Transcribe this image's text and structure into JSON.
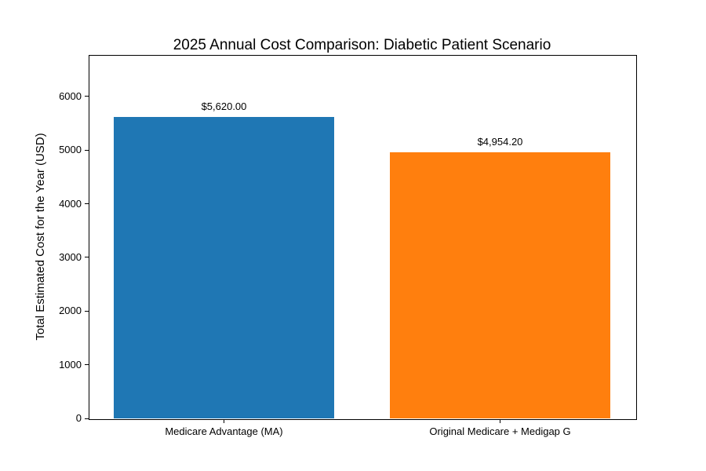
{
  "chart_data": {
    "type": "bar",
    "title": "2025 Annual Cost Comparison: Diabetic Patient Scenario",
    "xlabel": "",
    "ylabel": "Total Estimated Cost for the Year (USD)",
    "categories": [
      "Medicare Advantage (MA)",
      "Original Medicare + Medigap G"
    ],
    "values": [
      5620.0,
      4954.2
    ],
    "value_labels": [
      "$5,620.00",
      "$4,954.20"
    ],
    "bar_colors": [
      "#1f77b4",
      "#ff7f0e"
    ],
    "yticks": [
      0,
      1000,
      2000,
      3000,
      4000,
      5000,
      6000
    ],
    "ytick_labels": [
      "0",
      "1000",
      "2000",
      "3000",
      "4000",
      "5000",
      "6000"
    ],
    "ylim": [
      0,
      6775
    ],
    "xlim": [
      -0.49,
      1.49
    ],
    "bar_width": 0.8,
    "grid": false,
    "legend": "none",
    "text_color": "#000000",
    "background_color": "#ffffff",
    "frame_color": "#000000"
  }
}
